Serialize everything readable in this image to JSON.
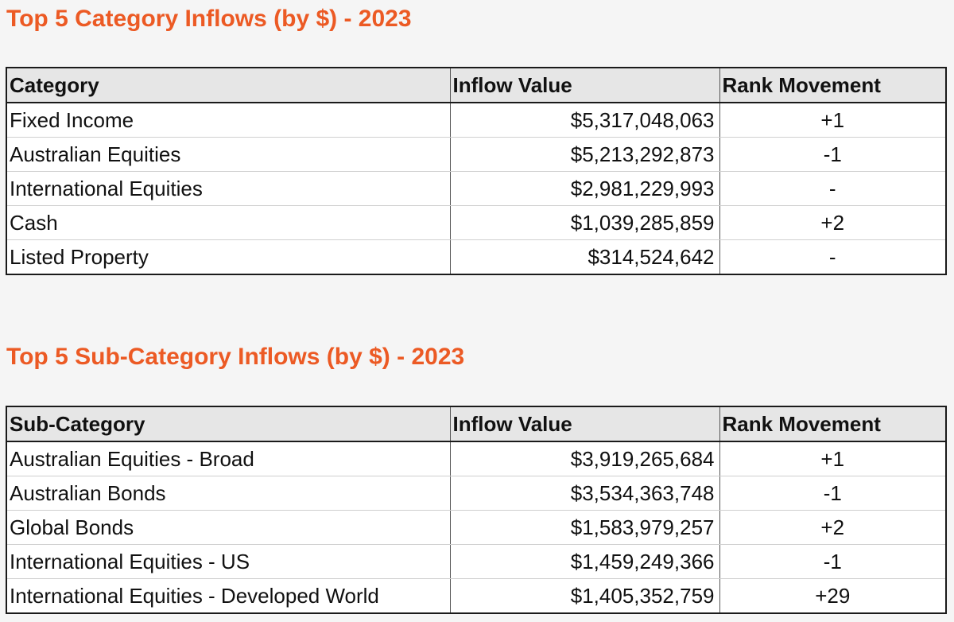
{
  "category_section": {
    "title": "Top 5 Category Inflows (by $) - 2023",
    "headers": [
      "Category",
      "Inflow Value",
      "Rank Movement"
    ],
    "rows": [
      {
        "name": "Fixed Income",
        "value": "$5,317,048,063",
        "rank": "+1"
      },
      {
        "name": "Australian Equities",
        "value": "$5,213,292,873",
        "rank": "-1"
      },
      {
        "name": "International Equities",
        "value": "$2,981,229,993",
        "rank": "-"
      },
      {
        "name": "Cash",
        "value": "$1,039,285,859",
        "rank": "+2"
      },
      {
        "name": "Listed Property",
        "value": "$314,524,642",
        "rank": "-"
      }
    ]
  },
  "subcategory_section": {
    "title": "Top 5 Sub-Category Inflows (by $) - 2023",
    "headers": [
      "Sub-Category",
      "Inflow Value",
      "Rank Movement"
    ],
    "rows": [
      {
        "name": "Australian Equities - Broad",
        "value": "$3,919,265,684",
        "rank": "+1"
      },
      {
        "name": "Australian Bonds",
        "value": "$3,534,363,748",
        "rank": "-1"
      },
      {
        "name": "Global Bonds",
        "value": "$1,583,979,257",
        "rank": "+2"
      },
      {
        "name": "International Equities - US",
        "value": "$1,459,249,366",
        "rank": "-1"
      },
      {
        "name": "International Equities - Developed World",
        "value": "$1,405,352,759",
        "rank": "+29"
      }
    ]
  },
  "colors": {
    "title": "#ec5a24",
    "header_bg": "#e6e6e6",
    "page_bg": "#f5f5f5"
  }
}
